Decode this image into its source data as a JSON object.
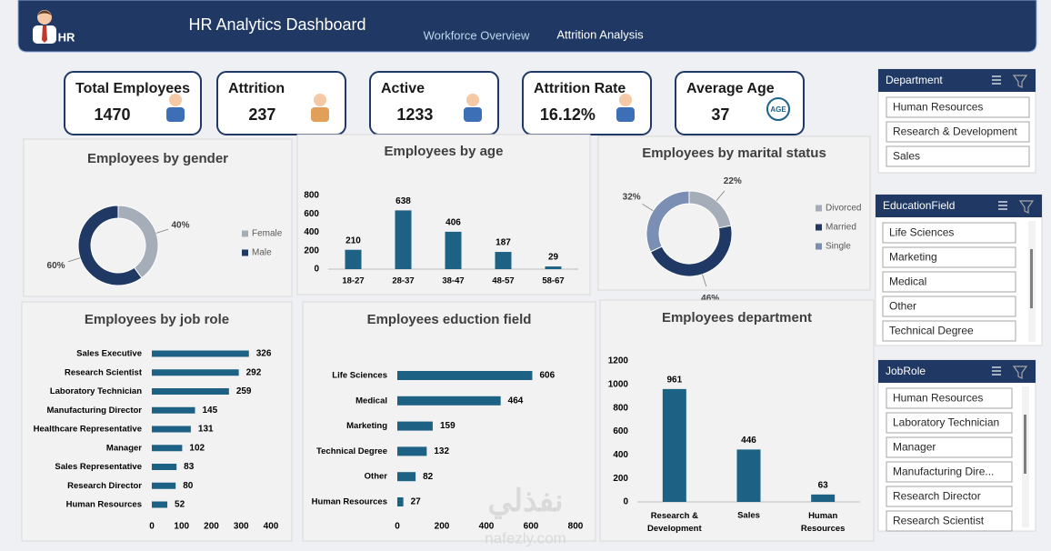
{
  "header": {
    "logo_text": "HR",
    "title": "HR Analytics Dashboard",
    "tabs": [
      "Workforce Overview",
      "Attrition Analysis"
    ]
  },
  "kpis": [
    {
      "label": "Total Employees",
      "value": 1470
    },
    {
      "label": "Attrition",
      "value": 237
    },
    {
      "label": "Active",
      "value": 1233
    },
    {
      "label": "Attrition Rate",
      "value": "16.12%"
    },
    {
      "label": "Average  Age",
      "value": 37,
      "icon_text": "AGE"
    }
  ],
  "chart_data": [
    {
      "type": "pie",
      "title": "Employees by gender",
      "categories": [
        "Female",
        "Male"
      ],
      "values": [
        40,
        60
      ],
      "value_labels": [
        "40%",
        "60%"
      ],
      "colors": [
        "#a5adb8",
        "#1f3864"
      ],
      "donut": true,
      "legend": "right"
    },
    {
      "type": "bar",
      "title": "Employees by age",
      "categories": [
        "18-27",
        "28-37",
        "38-47",
        "48-57",
        "58-67"
      ],
      "values": [
        210,
        638,
        406,
        187,
        29
      ],
      "color": "#1d6185",
      "ylim": [
        0,
        800
      ],
      "yticks": [
        0,
        200,
        400,
        600,
        800
      ],
      "grid": false
    },
    {
      "type": "pie",
      "title": "Employees by marital status",
      "categories": [
        "Divorced",
        "Married",
        "Single"
      ],
      "values": [
        22,
        46,
        32
      ],
      "value_labels": [
        "22%",
        "46%",
        "32%"
      ],
      "colors": [
        "#a5adb8",
        "#1f3864",
        "#7a8fb3"
      ],
      "donut": true,
      "legend": "right"
    },
    {
      "type": "hbar",
      "title": "Employees by job role",
      "categories": [
        "Sales Executive",
        "Research Scientist",
        "Laboratory Technician",
        "Manufacturing Director",
        "Healthcare Representative",
        "Manager",
        "Sales Representative",
        "Research Director",
        "Human Resources"
      ],
      "values": [
        326,
        292,
        259,
        145,
        131,
        102,
        83,
        80,
        52
      ],
      "color": "#1d6185",
      "xlim": [
        0,
        400
      ],
      "xticks": [
        0,
        100,
        200,
        300,
        400
      ],
      "grid": false
    },
    {
      "type": "hbar",
      "title": "Employees eduction field",
      "categories": [
        "Life Sciences",
        "Medical",
        "Marketing",
        "Technical Degree",
        "Other",
        "Human Resources"
      ],
      "values": [
        606,
        464,
        159,
        132,
        82,
        27
      ],
      "color": "#1d6185",
      "xlim": [
        0,
        800
      ],
      "xticks": [
        0,
        200,
        400,
        600,
        800
      ],
      "grid": false
    },
    {
      "type": "bar",
      "title": "Employees department",
      "categories": [
        "Research & Development",
        "Sales",
        "Human Resources"
      ],
      "values": [
        961,
        446,
        63
      ],
      "color": "#1d6185",
      "ylim": [
        0,
        1200
      ],
      "yticks": [
        0,
        200,
        400,
        600,
        800,
        1000,
        1200
      ],
      "grid": false
    }
  ],
  "slicers": [
    {
      "title": "Department",
      "items": [
        "Human Resources",
        "Research & Development",
        "Sales"
      ]
    },
    {
      "title": "EducationField",
      "items": [
        "Life Sciences",
        "Marketing",
        "Medical",
        "Other",
        "Technical Degree"
      ]
    },
    {
      "title": "JobRole",
      "items": [
        "Human Resources",
        "Laboratory Technician",
        "Manager",
        "Manufacturing Dire...",
        "Research Director",
        "Research Scientist"
      ]
    }
  ],
  "watermark": [
    "نفذلي",
    "nafezly.com"
  ]
}
